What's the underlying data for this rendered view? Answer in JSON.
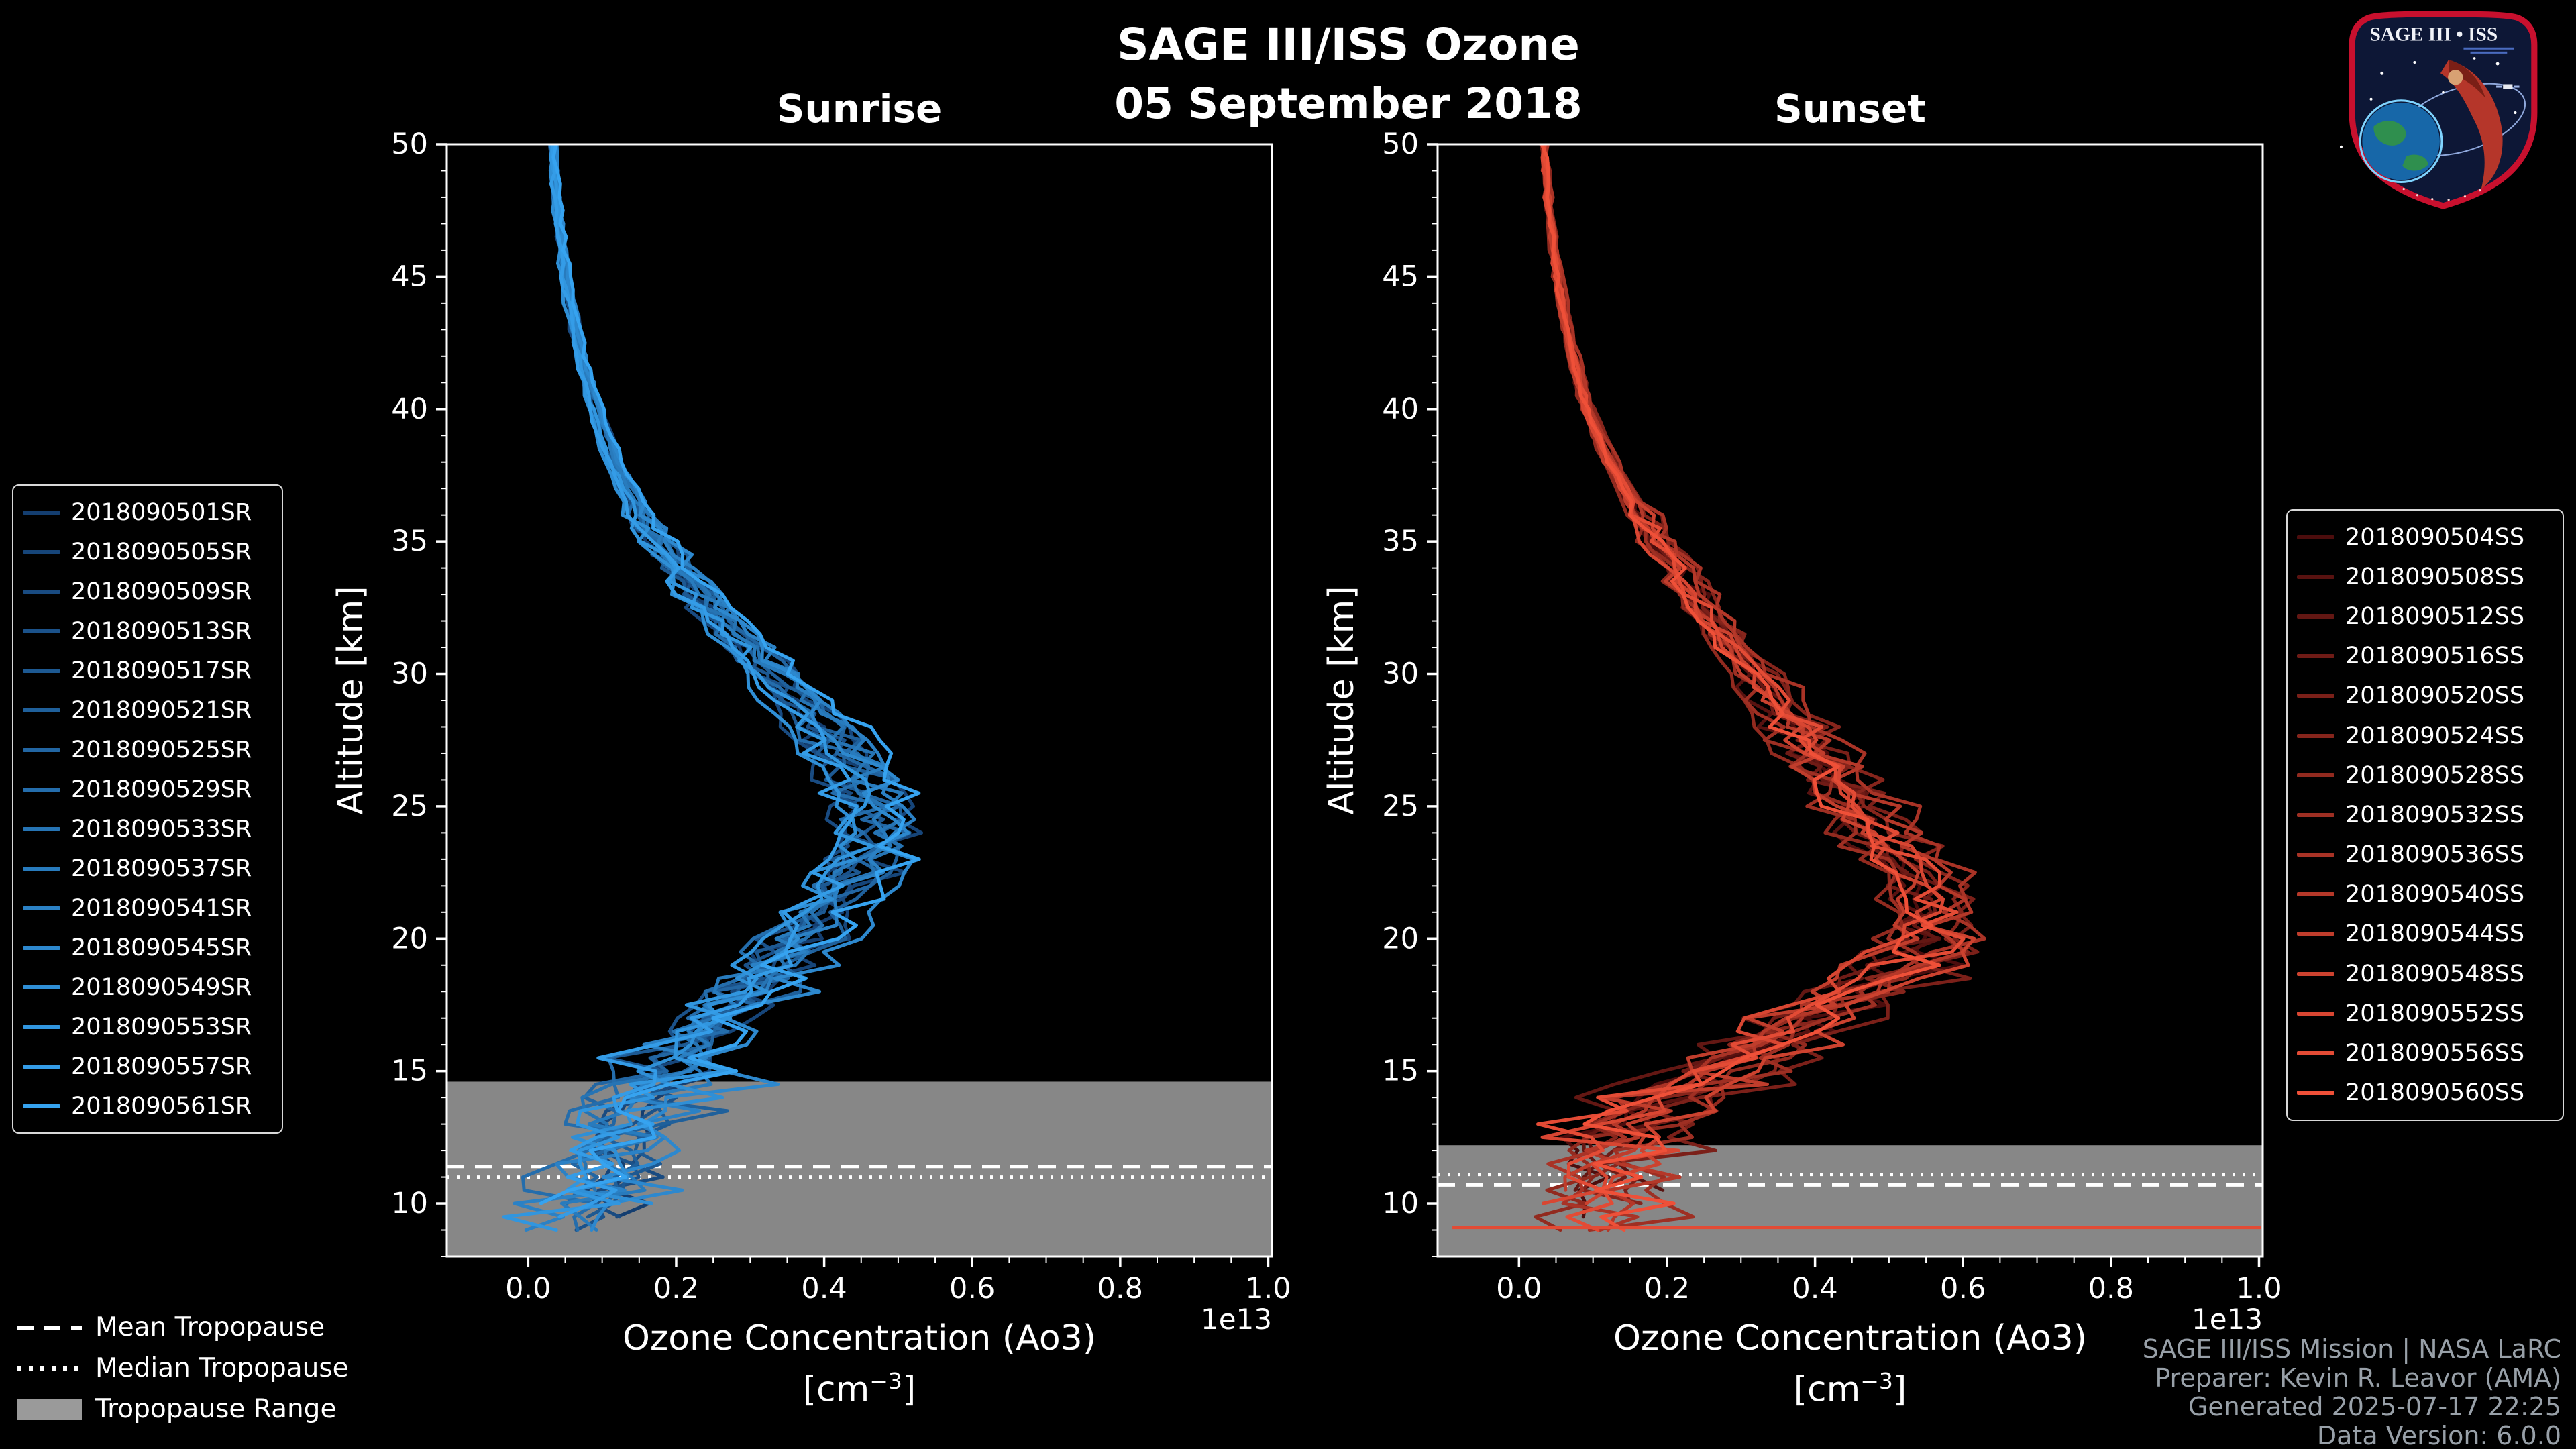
{
  "title": "SAGE III/ISS Ozone",
  "date": "05 September 2018",
  "logo": {
    "title": "SAGE III • ISS"
  },
  "footer": {
    "credits": [
      "SAGE III/ISS Mission | NASA LaRC",
      "Preparer: Kevin R. Leavor (AMA)",
      "Generated 2025-07-17 22:25",
      "Data Version: 6.0.0"
    ]
  },
  "tropopause_legend": {
    "mean_label": "Mean Tropopause",
    "median_label": "Median Tropopause",
    "range_label": "Tropopause Range"
  },
  "chart_data": [
    {
      "type": "line",
      "panel": "sunrise",
      "title": "Sunrise",
      "xlabel": "Ozone Concentration (Ao3)",
      "xunit": {
        "open": "[cm",
        "exp": "−3",
        "close": "]"
      },
      "ylabel": "Altitude [km]",
      "offset_label": "1e13",
      "xlim": [
        -0.11,
        1.005
      ],
      "ylim": [
        8,
        50
      ],
      "xticks": [
        0.0,
        0.2,
        0.4,
        0.6,
        0.8,
        1.0
      ],
      "yticks": [
        10,
        15,
        20,
        25,
        30,
        35,
        40,
        45,
        50
      ],
      "legend_entries": [
        "2018090501SR",
        "2018090505SR",
        "2018090509SR",
        "2018090513SR",
        "2018090517SR",
        "2018090521SR",
        "2018090525SR",
        "2018090529SR",
        "2018090533SR",
        "2018090537SR",
        "2018090541SR",
        "2018090545SR",
        "2018090549SR",
        "2018090553SR",
        "2018090557SR",
        "2018090561SR"
      ],
      "color_start": "#143e70",
      "color_end": "#36a3f0",
      "mean_profile": {
        "altitude_km": [
          8.5,
          9,
          10,
          11,
          12,
          13,
          14,
          15,
          16,
          17,
          18,
          19,
          20,
          21,
          22,
          23,
          24,
          25,
          26,
          28,
          30,
          32,
          35,
          38,
          40,
          42,
          45,
          48,
          50
        ],
        "ozone_1e13_cm3": [
          0.05,
          0.06,
          0.09,
          0.1,
          0.11,
          0.13,
          0.155,
          0.19,
          0.225,
          0.26,
          0.3,
          0.335,
          0.37,
          0.4,
          0.43,
          0.455,
          0.465,
          0.465,
          0.45,
          0.4,
          0.325,
          0.26,
          0.175,
          0.115,
          0.09,
          0.07,
          0.05,
          0.038,
          0.033
        ]
      },
      "tropopause": {
        "mean_km": 11.4,
        "median_km": 11.0,
        "range_km": [
          8.0,
          14.6
        ]
      },
      "noise_seed": 905
    },
    {
      "type": "line",
      "panel": "sunset",
      "title": "Sunset",
      "xlabel": "Ozone Concentration (Ao3)",
      "xunit": {
        "open": "[cm",
        "exp": "−3",
        "close": "]"
      },
      "ylabel": "Altitude [km]",
      "offset_label": "1e13",
      "xlim": [
        -0.11,
        1.005
      ],
      "ylim": [
        8,
        50
      ],
      "xticks": [
        0.0,
        0.2,
        0.4,
        0.6,
        0.8,
        1.0
      ],
      "yticks": [
        10,
        15,
        20,
        25,
        30,
        35,
        40,
        45,
        50
      ],
      "legend_entries": [
        "2018090504SS",
        "2018090508SS",
        "2018090512SS",
        "2018090516SS",
        "2018090520SS",
        "2018090524SS",
        "2018090528SS",
        "2018090532SS",
        "2018090536SS",
        "2018090540SS",
        "2018090544SS",
        "2018090548SS",
        "2018090552SS",
        "2018090556SS",
        "2018090560SS"
      ],
      "color_start": "#4c0d0d",
      "color_end": "#ef5038",
      "mean_profile": {
        "altitude_km": [
          8.5,
          9,
          10,
          11,
          12,
          13,
          14,
          15,
          16,
          17,
          18,
          19,
          20,
          21,
          22,
          23,
          24,
          25,
          26,
          28,
          30,
          32,
          35,
          38,
          40,
          42,
          45,
          48,
          50
        ],
        "ozone_1e13_cm3": [
          0.1,
          0.11,
          0.12,
          0.12,
          0.13,
          0.16,
          0.21,
          0.27,
          0.33,
          0.4,
          0.47,
          0.54,
          0.575,
          0.575,
          0.555,
          0.53,
          0.5,
          0.47,
          0.44,
          0.385,
          0.325,
          0.27,
          0.19,
          0.125,
          0.095,
          0.075,
          0.053,
          0.04,
          0.035
        ]
      },
      "tropopause": {
        "mean_km": 10.7,
        "median_km": 11.1,
        "range_km": [
          8.0,
          12.2
        ]
      },
      "artifact_line_km": 9.1,
      "noise_seed": 906
    }
  ]
}
